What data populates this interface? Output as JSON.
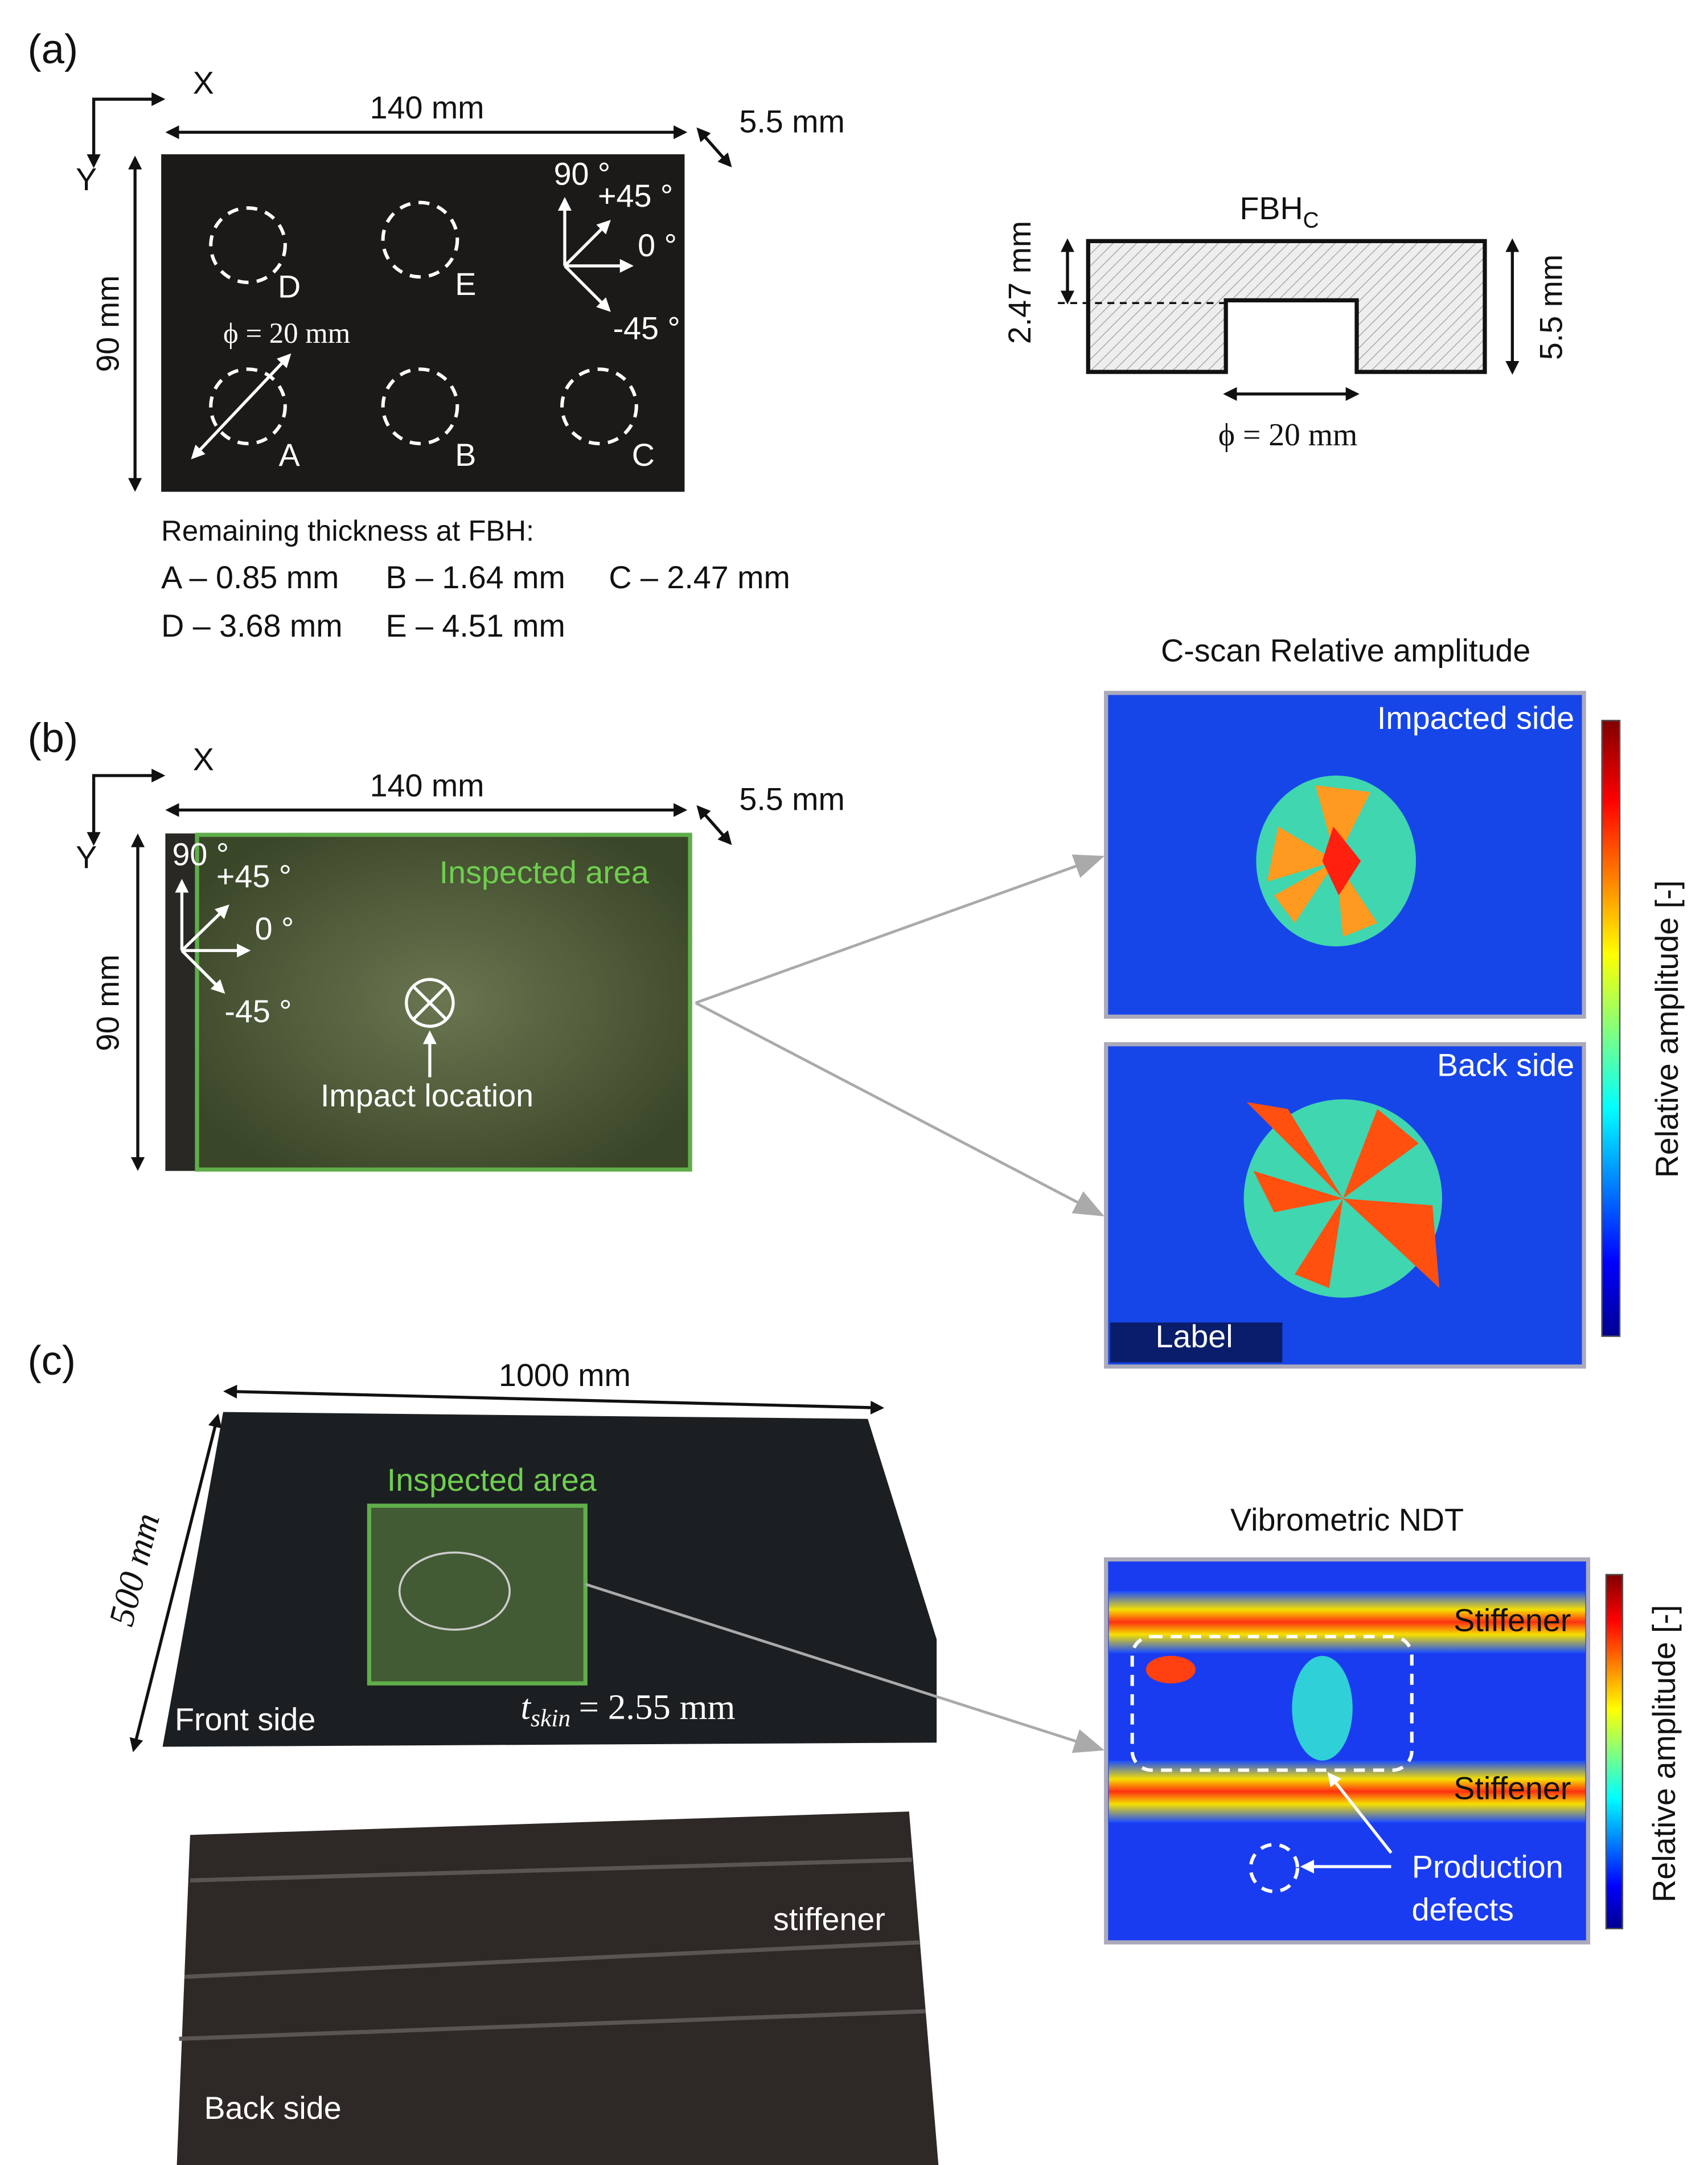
{
  "panel_a": {
    "label": "(a)",
    "x_axis": "X",
    "y_axis": "Y",
    "width": "140 mm",
    "height": "90 mm",
    "thickness": "5.5 mm",
    "orientations": [
      "90 °",
      "+45 °",
      "0 °",
      "-45 °"
    ],
    "holes": [
      "A",
      "B",
      "C",
      "D",
      "E"
    ],
    "diameter": "ϕ = 20 mm",
    "remaining_title": "Remaining thickness at FBH:",
    "remaining": [
      "A – 0.85 mm",
      "B – 1.64 mm",
      "C – 2.47 mm",
      "D – 3.68 mm",
      "E – 4.51 mm"
    ],
    "cross_section": {
      "title": "FBH",
      "subscript": "C",
      "depth": "2.47 mm",
      "thickness": "5.5 mm",
      "diameter": "ϕ = 20 mm"
    }
  },
  "panel_b": {
    "label": "(b)",
    "x_axis": "X",
    "y_axis": "Y",
    "width": "140 mm",
    "height": "90 mm",
    "thickness": "5.5 mm",
    "orientations": [
      "90 °",
      "+45 °",
      "0 °",
      "-45 °"
    ],
    "inspected_area": "Inspected area",
    "impact": "Impact location",
    "cscan_title": "C-scan Relative amplitude",
    "scans": [
      "Impacted side",
      "Back side"
    ],
    "scan_label": "Label",
    "colorbar_label": "Relative amplitude [-]"
  },
  "panel_c": {
    "label": "(c)",
    "width": "1000 mm",
    "height": "500 mm",
    "inspected_area": "Inspected area",
    "front": "Front side",
    "t_symbol": "t",
    "t_subscript": "skin",
    "t_value": "= 2.55 mm",
    "stiffener": "stiffener",
    "back": "Back side",
    "ndt_title": "Vibrometric NDT",
    "stiffeners": [
      "Stiffener",
      "Stiffener"
    ],
    "defects": [
      "Production",
      "defects"
    ],
    "colorbar_label": "Relative amplitude [-]"
  }
}
